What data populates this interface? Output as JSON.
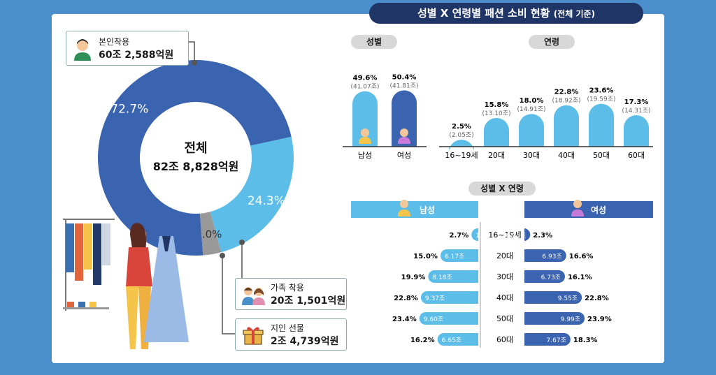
{
  "title": "성별 X 연령별 패션 소비 현황",
  "title_sub": "(전체 기준)",
  "donut": {
    "center_label": "전체",
    "center_value": "82조 8,828억원",
    "self": {
      "label": "본인착용",
      "value": "60조 2,588억원",
      "pct_text": "72.7%"
    },
    "family": {
      "label": "가족 착용",
      "value": "20조 1,501억원",
      "pct_text": "24.3%"
    },
    "gift": {
      "label": "지인 선물",
      "value": "2조 4,739억원",
      "pct_text": "3.0%"
    }
  },
  "gender_label": "성별",
  "age_label": "연령",
  "cross_label": "성별 X 연령",
  "male_label": "남성",
  "female_label": "여성",
  "colors": {
    "male": "#5bbde8",
    "female": "#3a63b0",
    "gift": "#999999",
    "navy": "#1f3566"
  },
  "chart_data": [
    {
      "type": "pie",
      "categories": [
        "본인착용",
        "가족 착용",
        "지인 선물"
      ],
      "values": [
        72.7,
        24.3,
        3.0
      ],
      "amounts": [
        "60조 2,588억원",
        "20조 1,501억원",
        "2조 4,739억원"
      ]
    },
    {
      "type": "bar",
      "title": "성별",
      "categories": [
        "남성",
        "여성"
      ],
      "values": [
        49.6,
        50.4
      ],
      "value_labels": [
        "49.6%",
        "50.4%"
      ],
      "amount_labels": [
        "(41.07조)",
        "(41.81조)"
      ]
    },
    {
      "type": "bar",
      "title": "연령",
      "categories": [
        "16~19세",
        "20대",
        "30대",
        "40대",
        "50대",
        "60대"
      ],
      "values": [
        2.5,
        15.8,
        18.0,
        22.8,
        23.6,
        17.3
      ],
      "value_labels": [
        "2.5%",
        "15.8%",
        "18.0%",
        "22.8%",
        "23.6%",
        "17.3%"
      ],
      "amount_labels": [
        "(2.05조)",
        "(13.10조)",
        "(14.91조)",
        "(18.92조)",
        "(19.59조)",
        "(14.31조)"
      ]
    },
    {
      "type": "bar",
      "title": "성별 X 연령",
      "categories": [
        "16~19세",
        "20대",
        "30대",
        "40대",
        "50대",
        "60대"
      ],
      "series": [
        {
          "name": "남성",
          "values": [
            2.7,
            15.0,
            19.9,
            22.8,
            23.4,
            16.2
          ],
          "value_labels": [
            "2.7%",
            "15.0%",
            "19.9%",
            "22.8%",
            "23.4%",
            "16.2%"
          ],
          "amount_labels": [
            "1.10조",
            "6.17조",
            "8.18조",
            "9.37조",
            "9.60조",
            "6.65조"
          ]
        },
        {
          "name": "여성",
          "values": [
            2.3,
            16.6,
            16.1,
            22.8,
            23.9,
            18.3
          ],
          "value_labels": [
            "2.3%",
            "16.6%",
            "16.1%",
            "22.8%",
            "23.9%",
            "18.3%"
          ],
          "amount_labels": [
            "0.95조",
            "6.93조",
            "6.73조",
            "9.55조",
            "9.99조",
            "7.67조"
          ]
        }
      ]
    }
  ]
}
